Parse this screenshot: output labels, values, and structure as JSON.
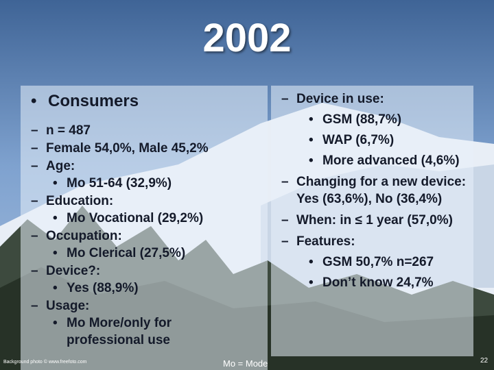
{
  "title": "2002",
  "left": {
    "heading": "Consumers",
    "items": [
      {
        "text": "n = 487"
      },
      {
        "text": "Female 54,0%, Male 45,2%"
      },
      {
        "text": "Age:",
        "sub": [
          "Mo 51-64 (32,9%)"
        ]
      },
      {
        "text": "Education:",
        "sub": [
          "Mo Vocational (29,2%)"
        ]
      },
      {
        "text": "Occupation:",
        "sub": [
          "Mo Clerical (27,5%)"
        ]
      },
      {
        "text": "Device?:",
        "sub": [
          "Yes (88,9%)"
        ]
      },
      {
        "text": "Usage:",
        "sub": [
          "Mo More/only for professional use"
        ]
      }
    ]
  },
  "right": {
    "items": [
      {
        "text": "Device in use:",
        "sub": [
          "GSM (88,7%)",
          "WAP (6,7%)",
          "More advanced (4,6%)"
        ]
      },
      {
        "text": "Changing for a new device: Yes (63,6%), No (36,4%)"
      },
      {
        "text": "When: in ≤ 1 year (57,0%)"
      },
      {
        "text": "Features:",
        "sub": [
          "GSM 50,7% n=267",
          "Don’t know 24,7%"
        ]
      }
    ]
  },
  "footer": {
    "credit": "Background photo © www.freefoto.com",
    "note": "Mo = Mode",
    "page": "22"
  }
}
